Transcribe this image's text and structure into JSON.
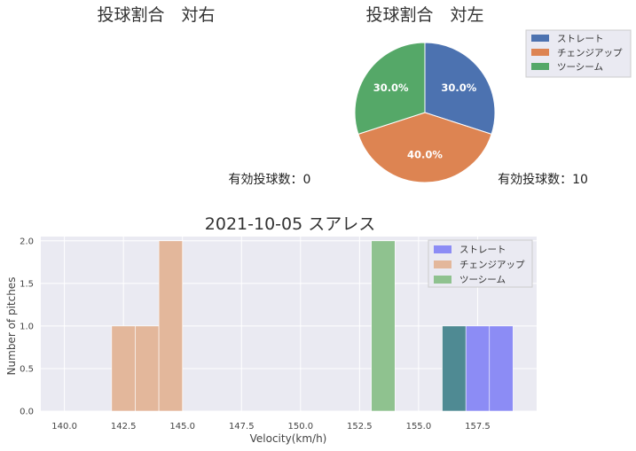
{
  "charts": {
    "right_pie": {
      "title": "投球割合　対右",
      "count_label": "有効投球数：0"
    },
    "left_pie": {
      "title": "投球割合　対左",
      "count_label": "有効投球数：10"
    },
    "histogram": {
      "title": "2021-10-05 スアレス",
      "xlabel": "Velocity(km/h)",
      "ylabel": "Number of pitches"
    }
  },
  "colors": {
    "straight": "#4c72b0",
    "change": "#dd8452",
    "sinker": "#55a868",
    "hist_straight": "#8c8cf5",
    "hist_change": "#e3b79b",
    "hist_sinker": "#8fc28f",
    "overlap": "#4f8a93",
    "plot_bg": "#eaeaf2"
  },
  "chart_data": [
    {
      "type": "pie",
      "title": "投球割合　対右",
      "slices": [],
      "annotation": "有効投球数：0"
    },
    {
      "type": "pie",
      "title": "投球割合　対左",
      "legend": "top-right",
      "slices": [
        {
          "name": "ストレート",
          "value": 30.0,
          "label": "30.0%"
        },
        {
          "name": "チェンジアップ",
          "value": 40.0,
          "label": "40.0%"
        },
        {
          "name": "ツーシーム",
          "value": 30.0,
          "label": "30.0%"
        }
      ],
      "annotation": "有効投球数：10"
    },
    {
      "type": "bar",
      "subtype": "histogram",
      "title": "2021-10-05 スアレス",
      "xlabel": "Velocity(km/h)",
      "ylabel": "Number of pitches",
      "xlim": [
        139.0,
        160.0
      ],
      "ylim": [
        0,
        2.05
      ],
      "xticks": [
        "140.0",
        "142.5",
        "145.0",
        "147.5",
        "150.0",
        "152.5",
        "155.0",
        "157.5"
      ],
      "yticks": [
        "0.0",
        "0.5",
        "1.0",
        "1.5",
        "2.0"
      ],
      "grid": true,
      "legend": "top-right",
      "series": [
        {
          "name": "ストレート",
          "bins": [
            [
              156,
              157,
              1
            ],
            [
              157,
              158,
              1
            ],
            [
              158,
              159,
              1
            ]
          ]
        },
        {
          "name": "チェンジアップ",
          "bins": [
            [
              142,
              143,
              1
            ],
            [
              143,
              144,
              1
            ],
            [
              144,
              145,
              2
            ]
          ]
        },
        {
          "name": "ツーシーム",
          "bins": [
            [
              153,
              154,
              2
            ]
          ]
        }
      ]
    }
  ]
}
